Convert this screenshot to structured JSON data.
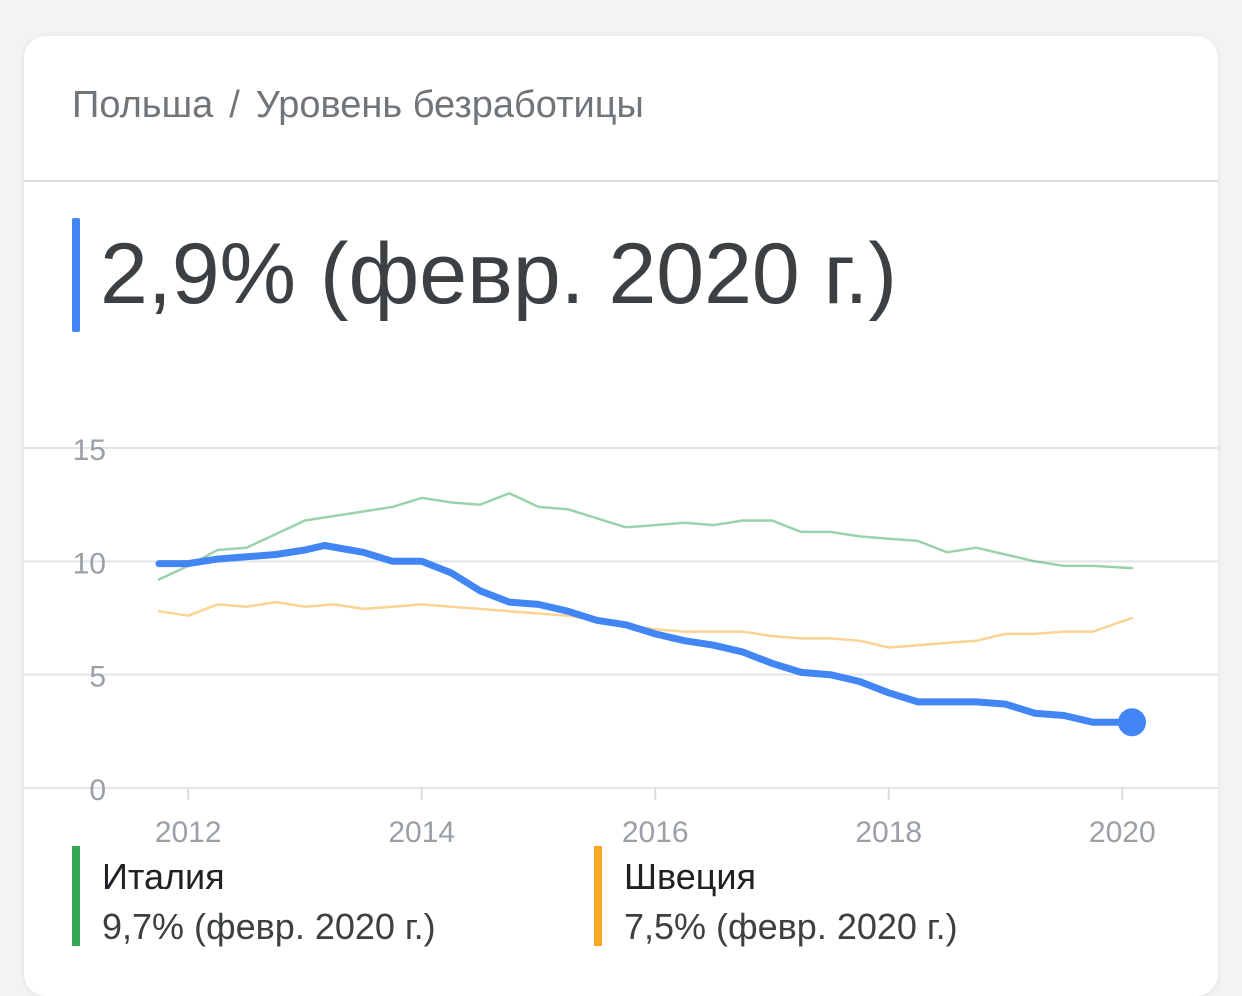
{
  "breadcrumb": {
    "country": "Польша",
    "separator": "/",
    "metric": "Уровень безработицы"
  },
  "headline": {
    "value": "2,9% (февр. 2020 г.)",
    "color": "#4285f4"
  },
  "legend": [
    {
      "name": "Италия",
      "value": "9,7% (февр. 2020 г.)",
      "color": "#34a853"
    },
    {
      "name": "Швеция",
      "value": "7,5% (февр. 2020 г.)",
      "color": "#f9a825"
    }
  ],
  "chart_data": {
    "type": "line",
    "ylim": [
      0,
      15
    ],
    "yticks": [
      "0",
      "5",
      "10",
      "15"
    ],
    "xlim": [
      "2011-10",
      "2020-02"
    ],
    "xticks": [
      "2012",
      "2014",
      "2016",
      "2018",
      "2020"
    ],
    "grid": true,
    "series": [
      {
        "name": "Польша",
        "color": "#4285f4",
        "emphasis": true,
        "points": [
          [
            "2011-10",
            9.9
          ],
          [
            "2012-01",
            9.9
          ],
          [
            "2012-04",
            10.1
          ],
          [
            "2012-07",
            10.2
          ],
          [
            "2012-10",
            10.3
          ],
          [
            "2013-01",
            10.5
          ],
          [
            "2013-03",
            10.7
          ],
          [
            "2013-07",
            10.4
          ],
          [
            "2013-10",
            10.0
          ],
          [
            "2014-01",
            10.0
          ],
          [
            "2014-04",
            9.5
          ],
          [
            "2014-07",
            8.7
          ],
          [
            "2014-10",
            8.2
          ],
          [
            "2015-01",
            8.1
          ],
          [
            "2015-04",
            7.8
          ],
          [
            "2015-07",
            7.4
          ],
          [
            "2015-10",
            7.2
          ],
          [
            "2016-01",
            6.8
          ],
          [
            "2016-04",
            6.5
          ],
          [
            "2016-07",
            6.3
          ],
          [
            "2016-10",
            6.0
          ],
          [
            "2017-01",
            5.5
          ],
          [
            "2017-04",
            5.1
          ],
          [
            "2017-07",
            5.0
          ],
          [
            "2017-10",
            4.7
          ],
          [
            "2018-01",
            4.2
          ],
          [
            "2018-04",
            3.8
          ],
          [
            "2018-07",
            3.8
          ],
          [
            "2018-10",
            3.8
          ],
          [
            "2019-01",
            3.7
          ],
          [
            "2019-04",
            3.3
          ],
          [
            "2019-07",
            3.2
          ],
          [
            "2019-10",
            2.9
          ],
          [
            "2020-02",
            2.9
          ]
        ]
      },
      {
        "name": "Италия",
        "color": "#34a853",
        "emphasis": false,
        "points": [
          [
            "2011-10",
            9.2
          ],
          [
            "2012-01",
            9.8
          ],
          [
            "2012-04",
            10.5
          ],
          [
            "2012-07",
            10.6
          ],
          [
            "2012-10",
            11.2
          ],
          [
            "2013-01",
            11.8
          ],
          [
            "2013-04",
            12.0
          ],
          [
            "2013-07",
            12.2
          ],
          [
            "2013-10",
            12.4
          ],
          [
            "2014-01",
            12.8
          ],
          [
            "2014-04",
            12.6
          ],
          [
            "2014-07",
            12.5
          ],
          [
            "2014-10",
            13.0
          ],
          [
            "2015-01",
            12.4
          ],
          [
            "2015-04",
            12.3
          ],
          [
            "2015-07",
            11.9
          ],
          [
            "2015-10",
            11.5
          ],
          [
            "2016-01",
            11.6
          ],
          [
            "2016-04",
            11.7
          ],
          [
            "2016-07",
            11.6
          ],
          [
            "2016-10",
            11.8
          ],
          [
            "2017-01",
            11.8
          ],
          [
            "2017-04",
            11.3
          ],
          [
            "2017-07",
            11.3
          ],
          [
            "2017-10",
            11.1
          ],
          [
            "2018-01",
            11.0
          ],
          [
            "2018-04",
            10.9
          ],
          [
            "2018-07",
            10.4
          ],
          [
            "2018-10",
            10.6
          ],
          [
            "2019-01",
            10.3
          ],
          [
            "2019-04",
            10.0
          ],
          [
            "2019-07",
            9.8
          ],
          [
            "2019-10",
            9.8
          ],
          [
            "2020-02",
            9.7
          ]
        ]
      },
      {
        "name": "Швеция",
        "color": "#f9a825",
        "emphasis": false,
        "points": [
          [
            "2011-10",
            7.8
          ],
          [
            "2012-01",
            7.6
          ],
          [
            "2012-04",
            8.1
          ],
          [
            "2012-07",
            8.0
          ],
          [
            "2012-10",
            8.2
          ],
          [
            "2013-01",
            8.0
          ],
          [
            "2013-04",
            8.1
          ],
          [
            "2013-07",
            7.9
          ],
          [
            "2013-10",
            8.0
          ],
          [
            "2014-01",
            8.1
          ],
          [
            "2014-04",
            8.0
          ],
          [
            "2014-07",
            7.9
          ],
          [
            "2014-10",
            7.8
          ],
          [
            "2015-01",
            7.7
          ],
          [
            "2015-04",
            7.6
          ],
          [
            "2015-07",
            7.4
          ],
          [
            "2015-10",
            7.2
          ],
          [
            "2016-01",
            7.0
          ],
          [
            "2016-04",
            6.9
          ],
          [
            "2016-07",
            6.9
          ],
          [
            "2016-10",
            6.9
          ],
          [
            "2017-01",
            6.7
          ],
          [
            "2017-04",
            6.6
          ],
          [
            "2017-07",
            6.6
          ],
          [
            "2017-10",
            6.5
          ],
          [
            "2018-01",
            6.2
          ],
          [
            "2018-04",
            6.3
          ],
          [
            "2018-07",
            6.4
          ],
          [
            "2018-10",
            6.5
          ],
          [
            "2019-01",
            6.8
          ],
          [
            "2019-04",
            6.8
          ],
          [
            "2019-07",
            6.9
          ],
          [
            "2019-10",
            6.9
          ],
          [
            "2020-02",
            7.5
          ]
        ]
      }
    ]
  }
}
